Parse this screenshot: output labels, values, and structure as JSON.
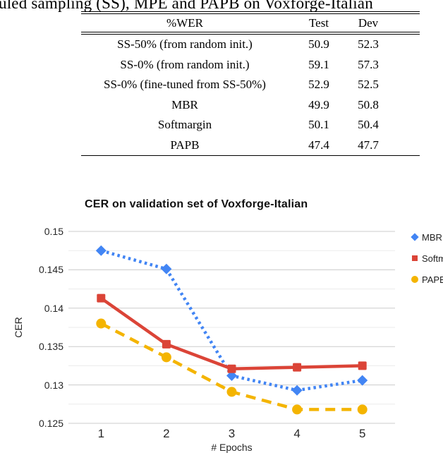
{
  "caption": "uled sampling (SS), MPE and PAPB on Voxforge-Italian",
  "table": {
    "headers": [
      "%WER",
      "Test",
      "Dev"
    ],
    "rows": [
      {
        "label": "SS-50% (from random init.)",
        "test": "50.9",
        "dev": "52.3"
      },
      {
        "label": "SS-0% (from random init.)",
        "test": "59.1",
        "dev": "57.3"
      },
      {
        "label": "SS-0% (fine-tuned from SS-50%)",
        "test": "52.9",
        "dev": "52.5"
      },
      {
        "label": "MBR",
        "test": "49.9",
        "dev": "50.8"
      },
      {
        "label": "Softmargin",
        "test": "50.1",
        "dev": "50.4"
      },
      {
        "label": "PAPB",
        "test": "47.4",
        "dev": "47.7"
      }
    ]
  },
  "chart_data": {
    "type": "line",
    "title": "CER on validation set of Voxforge-Italian",
    "xlabel": "# Epochs",
    "ylabel": "CER",
    "categories": [
      "1",
      "2",
      "3",
      "4",
      "5"
    ],
    "ylim": [
      0.125,
      0.15
    ],
    "ytick_labels": [
      "0.15",
      "0.145",
      "0.14",
      "0.135",
      "0.13",
      "0.125"
    ],
    "ytick_values": [
      0.15,
      0.145,
      0.14,
      0.135,
      0.13,
      0.125
    ],
    "minor_grid_step": 0.0025,
    "grid": true,
    "legend_position": "right",
    "series": [
      {
        "name": "MBR",
        "color": "#4285f4",
        "line_style": "dotted",
        "marker": "diamond",
        "values": [
          0.1475,
          0.1451,
          0.1312,
          0.1293,
          0.1306
        ]
      },
      {
        "name": "Softmargin",
        "color": "#db4437",
        "line_style": "solid",
        "marker": "square",
        "values": [
          0.1413,
          0.1353,
          0.1321,
          0.1323,
          0.1325
        ]
      },
      {
        "name": "PAPB",
        "color": "#f4b400",
        "line_style": "dashed",
        "marker": "circle",
        "values": [
          0.138,
          0.1336,
          0.1291,
          0.1268,
          0.1268
        ]
      }
    ]
  },
  "colors": {
    "major_gridline": "#cccccc",
    "minor_gridline": "#ebebeb",
    "axis_text": "#272727",
    "title_text": "#111111"
  }
}
